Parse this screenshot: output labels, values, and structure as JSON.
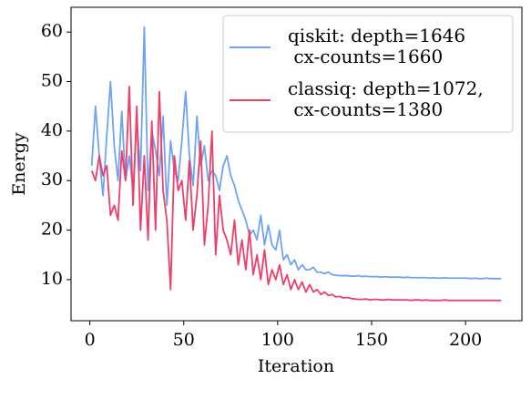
{
  "chart_data": {
    "type": "line",
    "xlabel": "Iteration",
    "ylabel": "Energy",
    "x": [
      1,
      3,
      5,
      7,
      9,
      11,
      13,
      15,
      17,
      19,
      21,
      23,
      25,
      27,
      29,
      31,
      33,
      35,
      37,
      39,
      41,
      43,
      45,
      47,
      49,
      51,
      53,
      55,
      57,
      59,
      61,
      63,
      65,
      67,
      69,
      71,
      73,
      75,
      77,
      79,
      81,
      83,
      85,
      87,
      89,
      91,
      93,
      95,
      97,
      99,
      101,
      103,
      105,
      107,
      109,
      111,
      113,
      115,
      117,
      119,
      121,
      123,
      125,
      127,
      129,
      131,
      133,
      135,
      137,
      139,
      141,
      143,
      145,
      147,
      149,
      151,
      153,
      155,
      157,
      159,
      161,
      163,
      165,
      167,
      169,
      171,
      173,
      175,
      177,
      179,
      181,
      183,
      185,
      187,
      189,
      191,
      193,
      195,
      197,
      199,
      201,
      203,
      205,
      207,
      209,
      211,
      213,
      215,
      217,
      219
    ],
    "series": [
      {
        "name": "qiskit: depth=1646\n cx-counts=1660",
        "color": "#6ea4f2",
        "values": [
          33,
          45,
          35,
          27,
          39,
          50,
          37,
          30,
          44,
          30,
          35,
          28,
          42,
          32,
          61,
          28,
          40,
          36,
          31,
          43,
          25,
          38,
          32,
          30,
          38,
          48,
          35,
          29,
          43,
          33,
          37,
          30,
          32,
          31,
          28,
          33,
          35,
          31,
          29,
          26,
          24,
          22,
          19,
          20,
          18,
          23,
          17,
          21,
          17,
          16,
          20,
          14,
          15,
          13,
          14,
          12,
          13,
          12,
          12,
          12.5,
          11.5,
          11.5,
          11.2,
          11.5,
          11,
          10.9,
          10.8,
          10.8,
          10.8,
          10.7,
          10.7,
          10.8,
          10.6,
          10.7,
          10.6,
          10.6,
          10.6,
          10.5,
          10.6,
          10.5,
          10.5,
          10.5,
          10.5,
          10.4,
          10.5,
          10.4,
          10.4,
          10.4,
          10.4,
          10.4,
          10.3,
          10.4,
          10.3,
          10.3,
          10.4,
          10.3,
          10.3,
          10.3,
          10.3,
          10.3,
          10.3,
          10.2,
          10.3,
          10.2,
          10.2,
          10.3,
          10.2,
          10.2,
          10.2,
          10.2
        ]
      },
      {
        "name": "classiq: depth=1072,\n cx-counts=1380",
        "color": "#ee3f6a",
        "values": [
          32,
          30,
          35,
          31,
          33,
          23,
          25,
          22,
          36,
          30,
          49,
          25,
          45,
          20,
          35,
          18,
          42,
          20,
          48,
          28,
          22,
          8,
          35,
          28,
          30,
          22,
          34,
          20,
          27,
          38,
          17,
          25,
          40,
          15,
          27,
          20,
          18,
          15,
          22,
          13,
          18,
          12,
          20,
          11,
          15,
          10,
          16,
          9,
          12,
          10,
          13,
          9,
          11,
          8,
          10,
          8,
          9.5,
          7.5,
          9,
          7.5,
          8,
          7,
          7.5,
          6.8,
          7,
          6.5,
          6.6,
          6.3,
          6.4,
          6.2,
          6.1,
          6.0,
          6.0,
          6.1,
          5.9,
          6.0,
          6.0,
          5.9,
          5.9,
          6.0,
          5.9,
          5.9,
          5.9,
          5.9,
          5.9,
          5.8,
          5.9,
          5.9,
          5.8,
          5.9,
          5.8,
          5.8,
          5.8,
          5.8,
          5.9,
          5.8,
          5.8,
          5.8,
          5.8,
          5.8,
          5.8,
          5.8,
          5.8,
          5.8,
          5.8,
          5.8,
          5.8,
          5.8,
          5.8,
          5.8
        ]
      }
    ],
    "xlim": [
      -10,
      230
    ],
    "xticks": [
      0,
      50,
      100,
      150,
      200
    ],
    "ylim": [
      1.7,
      65
    ],
    "yticks": [
      10,
      20,
      30,
      40,
      50,
      60
    ],
    "legend": "upper right",
    "grid": false
  }
}
